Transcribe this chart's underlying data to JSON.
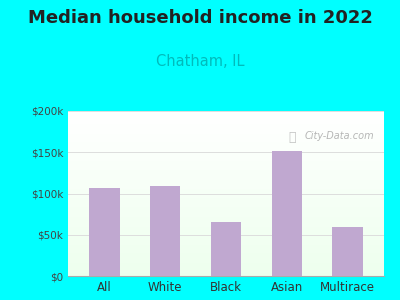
{
  "title": "Median household income in 2022",
  "subtitle": "Chatham, IL",
  "categories": [
    "All",
    "White",
    "Black",
    "Asian",
    "Multirace"
  ],
  "values": [
    107000,
    109000,
    65000,
    152000,
    60000
  ],
  "bar_color": "#c0a8d0",
  "title_fontsize": 13,
  "subtitle_fontsize": 10.5,
  "subtitle_color": "#00bbbb",
  "title_color": "#222222",
  "background_outer": "#00ffff",
  "ylim": [
    0,
    200000
  ],
  "yticks": [
    0,
    50000,
    100000,
    150000,
    200000
  ],
  "ytick_labels": [
    "$0",
    "$50k",
    "$100k",
    "$150k",
    "$200k"
  ],
  "watermark": "City-Data.com",
  "grid_color": "#dddddd"
}
